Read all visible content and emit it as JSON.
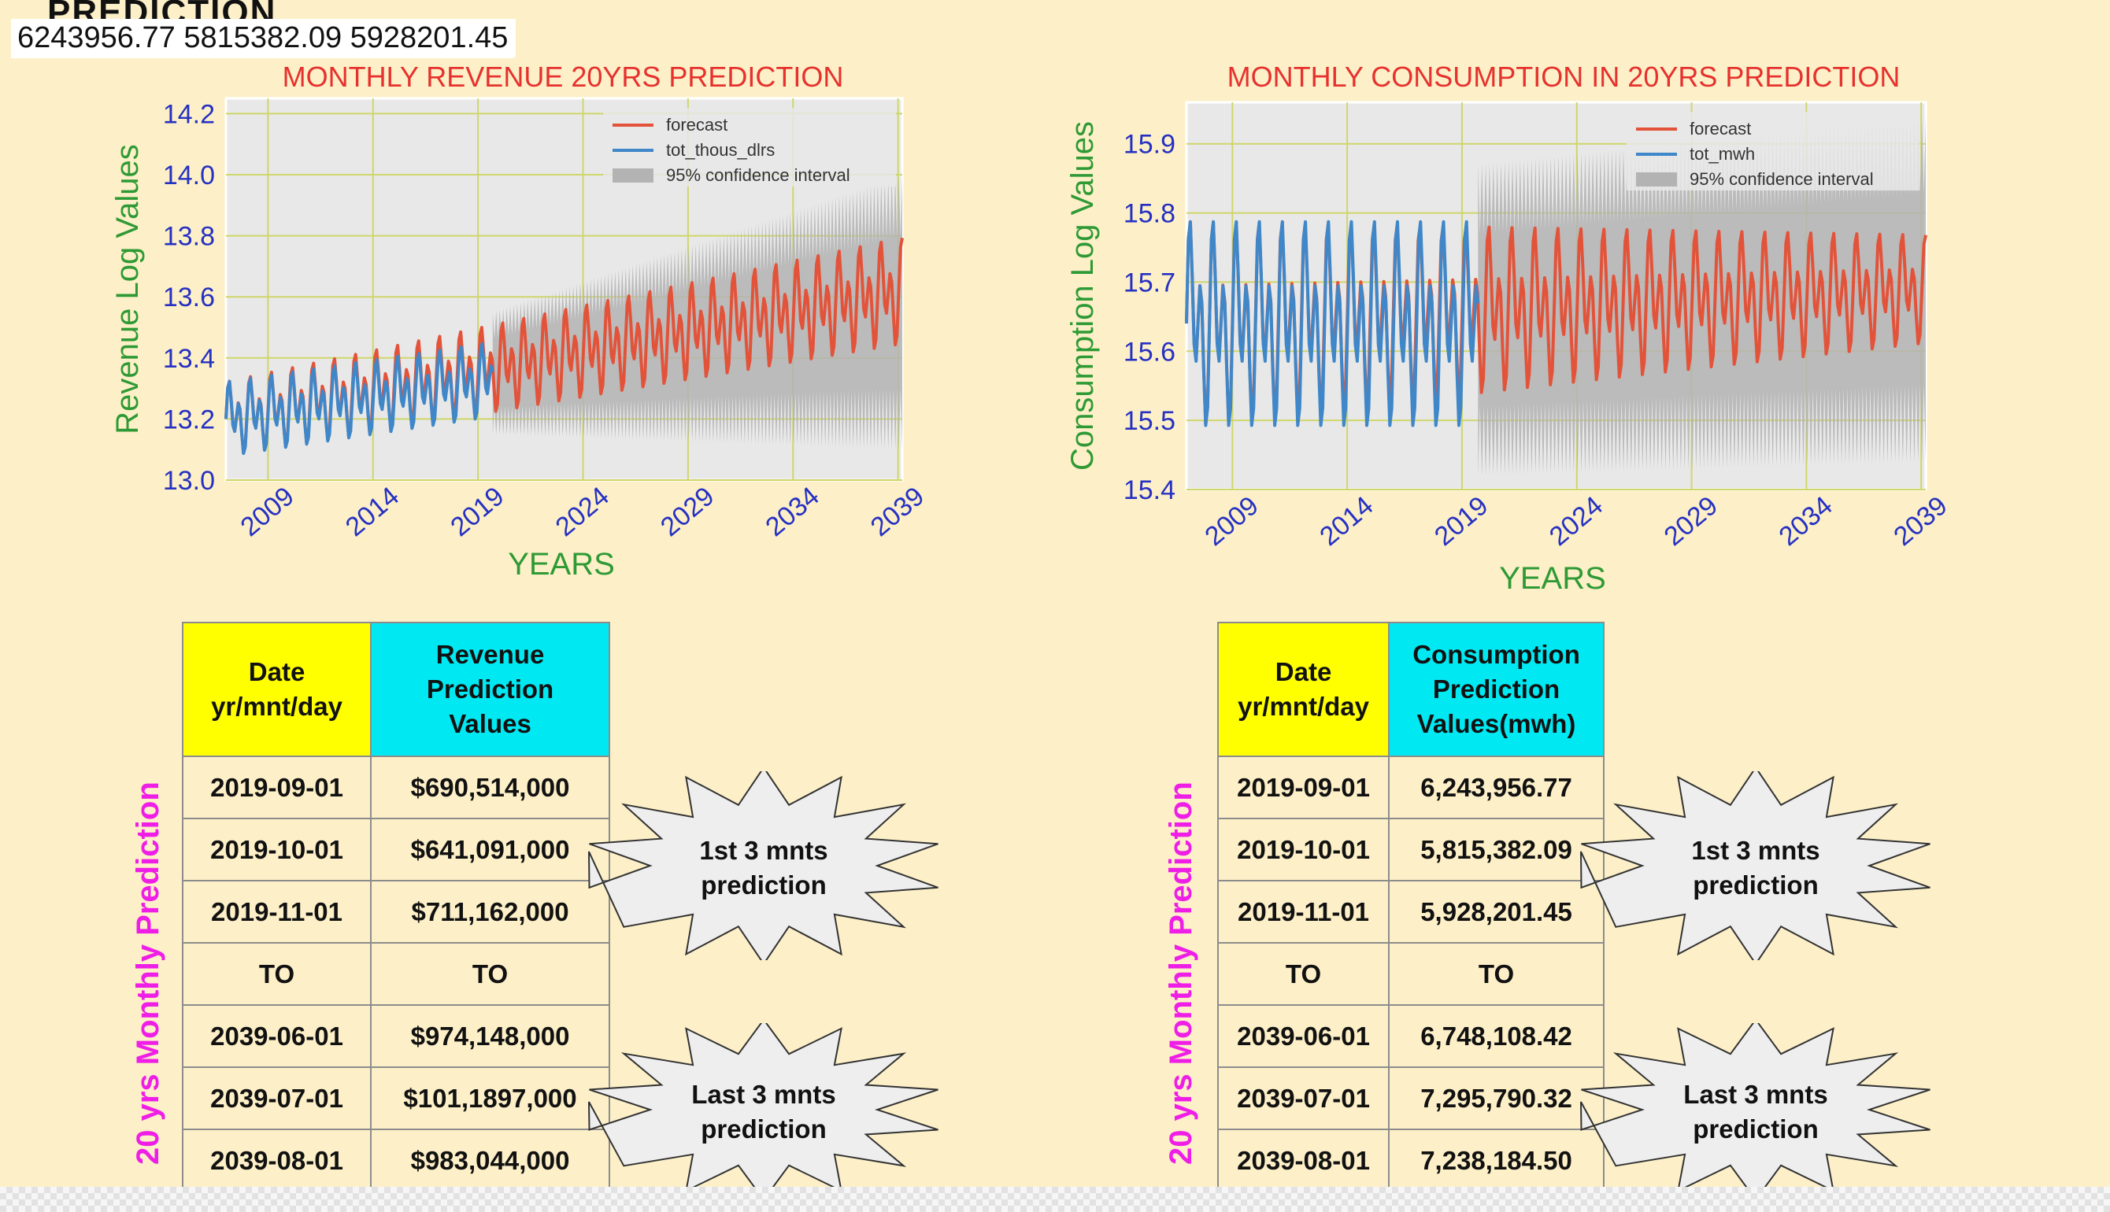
{
  "header": {
    "cut_title": "PREDICTION",
    "top_numbers": "6243956.77 5815382.09 5928201.45"
  },
  "colors": {
    "background": "#fdf0c8",
    "forecast": "#e2533a",
    "observed": "#3f87c8",
    "confidence": "#b3b3b3",
    "plot_bg": "#e8e8e8",
    "grid": "#cfd66a",
    "title": "#e6322e",
    "axis_label": "#2f9a35",
    "tick": "#2631c2",
    "side_label": "#ef1ee6",
    "header_date": "#ffff00",
    "header_value": "#00e9f2"
  },
  "chart_data": [
    {
      "type": "line",
      "title": "MONTHLY REVENUE 20YRS PREDICTION",
      "xlabel": "YEARS",
      "ylabel": "Revenue Log Values",
      "xlim": [
        2007.0,
        2039.2
      ],
      "ylim": [
        13.0,
        14.25
      ],
      "x_ticks": [
        "2009",
        "2014",
        "2019",
        "2024",
        "2029",
        "2034",
        "2039"
      ],
      "y_ticks": [
        "13.0",
        "13.2",
        "13.4",
        "13.6",
        "13.8",
        "14.0",
        "14.2"
      ],
      "grid": true,
      "legend_position": "top-right",
      "legend": [
        "forecast",
        "tot_thous_dlrs",
        "95% confidence interval"
      ],
      "series": [
        {
          "name": "tot_thous_dlrs",
          "start": 2007.0,
          "end": 2019.7,
          "base_start": 13.2,
          "base_end": 13.33,
          "amp_start": 0.14,
          "amp_end": 0.14
        },
        {
          "name": "forecast",
          "start": 2007.0,
          "end": 2039.2,
          "base_start": 13.2,
          "base_end": 13.62,
          "amp_start": 0.14,
          "amp_end": 0.2
        }
      ],
      "confidence_interval": {
        "start": 2019.7,
        "end": 2039.2,
        "upper_start": 13.55,
        "upper_end": 14.0,
        "lower_start": 13.15,
        "lower_end": 13.1
      }
    },
    {
      "type": "line",
      "title": "MONTHLY CONSUMPTION IN 20YRS PREDICTION",
      "xlabel": "YEARS",
      "ylabel": "Consumption Log Values",
      "xlim": [
        2007.0,
        2039.2
      ],
      "ylim": [
        15.4,
        15.96
      ],
      "x_ticks": [
        "2009",
        "2014",
        "2019",
        "2024",
        "2029",
        "2034",
        "2039"
      ],
      "y_ticks": [
        "15.4",
        "15.5",
        "15.6",
        "15.7",
        "15.8",
        "15.9"
      ],
      "grid": true,
      "legend_position": "top-right",
      "legend": [
        "forecast",
        "tot_mwh",
        "95% confidence interval"
      ],
      "series": [
        {
          "name": "tot_mwh",
          "start": 2007.0,
          "end": 2019.7,
          "base_start": 15.64,
          "base_end": 15.64,
          "amp_start": 0.17,
          "amp_end": 0.17
        },
        {
          "name": "forecast",
          "start": 2007.0,
          "end": 2039.2,
          "base_start": 15.64,
          "base_end": 15.69,
          "amp_start": 0.17,
          "amp_end": 0.09
        }
      ],
      "confidence_interval": {
        "start": 2019.7,
        "end": 2039.2,
        "upper_start": 15.87,
        "upper_end": 15.94,
        "lower_start": 15.42,
        "lower_end": 15.44
      }
    }
  ],
  "tables": {
    "revenue": {
      "side_label": "20 yrs Monthly Prediction",
      "header": {
        "date_line1": "Date",
        "date_line2": "yr/mnt/day",
        "value_line1": "Revenue",
        "value_line2": "Prediction",
        "value_line3": "Values"
      },
      "rows": [
        {
          "date": "2019-09-01",
          "value": "$690,514,000"
        },
        {
          "date": "2019-10-01",
          "value": "$641,091,000"
        },
        {
          "date": "2019-11-01",
          "value": "$711,162,000"
        },
        {
          "date": "TO",
          "value": "TO"
        },
        {
          "date": "2039-06-01",
          "value": "$974,148,000"
        },
        {
          "date": "2039-07-01",
          "value": "$101,1897,000"
        },
        {
          "date": "2039-08-01",
          "value": "$983,044,000"
        }
      ],
      "callouts": {
        "first_line1": "1st 3 mnts",
        "first_line2": "prediction",
        "last_line1": "Last 3 mnts",
        "last_line2": "prediction"
      }
    },
    "consumption": {
      "side_label": "20 yrs Monthly Prediction",
      "header": {
        "date_line1": "Date",
        "date_line2": "yr/mnt/day",
        "value_line1": "Consumption",
        "value_line2": "Prediction",
        "value_line3": "Values(mwh)"
      },
      "rows": [
        {
          "date": "2019-09-01",
          "value": "6,243,956.77"
        },
        {
          "date": "2019-10-01",
          "value": "5,815,382.09"
        },
        {
          "date": "2019-11-01",
          "value": "5,928,201.45"
        },
        {
          "date": "TO",
          "value": "TO"
        },
        {
          "date": "2039-06-01",
          "value": "6,748,108.42"
        },
        {
          "date": "2039-07-01",
          "value": "7,295,790.32"
        },
        {
          "date": "2039-08-01",
          "value": "7,238,184.50"
        }
      ],
      "callouts": {
        "first_line1": "1st 3 mnts",
        "first_line2": "prediction",
        "last_line1": "Last 3 mnts",
        "last_line2": "prediction"
      }
    }
  }
}
